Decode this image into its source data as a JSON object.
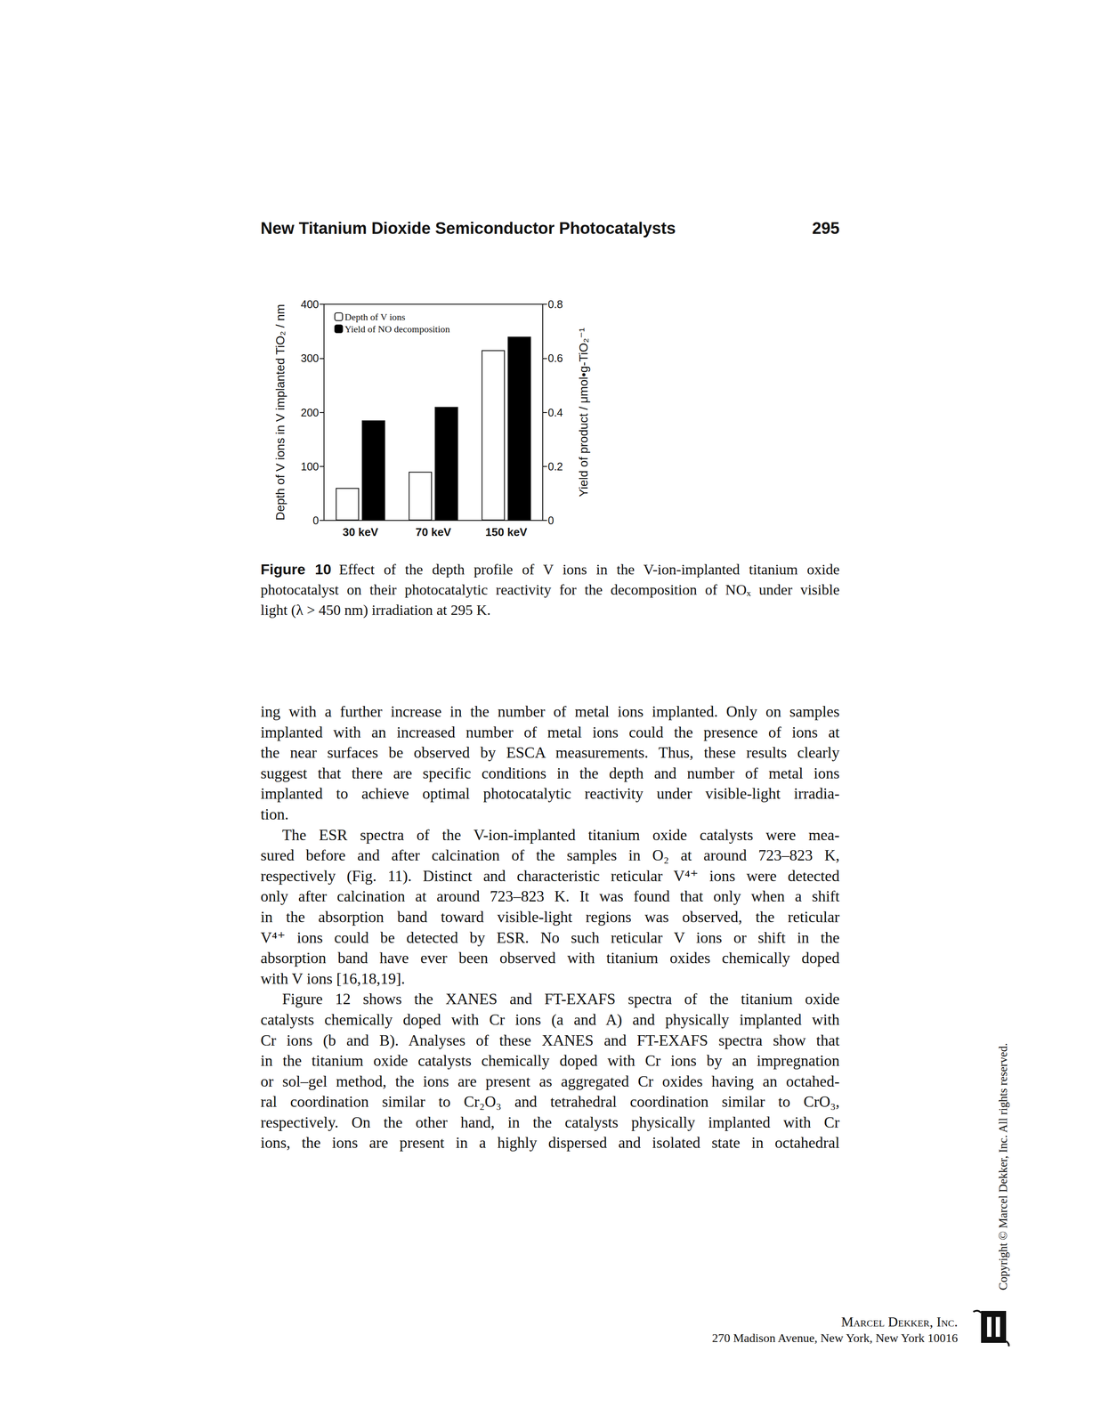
{
  "header": {
    "title": "New Titanium Dioxide Semiconductor Photocatalysts",
    "page": "295"
  },
  "chart_data": {
    "type": "bar",
    "categories": [
      "30 keV",
      "70 keV",
      "150 keV"
    ],
    "series": [
      {
        "name": "Depth of V ions",
        "color": "#ffffff",
        "values": [
          60,
          90,
          315
        ]
      },
      {
        "name": "Yield of NO decomposition",
        "color": "#000000",
        "values": [
          0.37,
          0.42,
          0.68
        ],
        "axis": "y2"
      }
    ],
    "y_label": "Depth of V ions in V implanted TiO₂ / nm",
    "y2_label": "Yield of product / μmol•g-TiO₂⁻¹",
    "ylim": [
      0,
      400
    ],
    "yticks": [
      0,
      100,
      200,
      300,
      400
    ],
    "y2lim": [
      0,
      0.8
    ],
    "y2ticks": [
      0,
      0.2,
      0.4,
      0.6,
      0.8
    ],
    "grid": false,
    "legend": "upper left"
  },
  "caption": {
    "label": "Figure 10",
    "lines": [
      "Effect of the depth profile of V ions in the V-ion-implanted titanium oxide",
      "photocatalyst on their photocatalytic reactivity for the decomposition of NOₓ under visible",
      "light (λ > 450 nm) irradiation at 295 K."
    ]
  },
  "paragraphs": [
    {
      "indent": false,
      "continues": false,
      "lines": [
        "ing with a further increase in the number of metal ions implanted. Only on samples",
        "implanted with an increased number of metal ions could the presence of ions at",
        "the near surfaces be observed by ESCA measurements. Thus, these results clearly",
        "suggest that there are specific conditions in the depth and number of metal ions",
        "implanted to achieve optimal photocatalytic reactivity under visible-light irradia-",
        "tion."
      ]
    },
    {
      "indent": true,
      "continues": false,
      "lines": [
        "The ESR spectra of the V-ion-implanted titanium oxide catalysts were mea-",
        "sured before and after calcination of the samples in O₂ at around 723–823 K,",
        "respectively (Fig. 11). Distinct and characteristic reticular V⁴⁺ ions were detected",
        "only after calcination at around 723–823 K. It was found that only when a shift",
        "in the absorption band toward visible-light regions was observed, the reticular",
        "V⁴⁺ ions could be detected by ESR. No such reticular V ions or shift in the",
        "absorption band have ever been observed with titanium oxides chemically doped",
        "with V ions [16,18,19]."
      ]
    },
    {
      "indent": true,
      "continues": true,
      "lines": [
        "Figure 12 shows the XANES and FT-EXAFS spectra of the titanium oxide",
        "catalysts chemically doped with Cr ions (a and A) and physically implanted with",
        "Cr ions (b and B). Analyses of these XANES and FT-EXAFS spectra show that",
        "in the titanium oxide catalysts chemically doped with Cr ions by an impregnation",
        "or sol–gel method, the ions are present as aggregated Cr oxides having an octahed-",
        "ral coordination similar to Cr₂O₃ and tetrahedral coordination similar to CrO₃,",
        "respectively. On the other hand, in the catalysts physically implanted with Cr",
        "ions, the ions are present in a highly dispersed and isolated state in octahedral"
      ]
    }
  ],
  "copyright": "Copyright © Marcel Dekker, Inc. All rights reserved.",
  "publisher": {
    "name": "Marcel Dekker, Inc.",
    "address": "270 Madison Avenue, New York, New York 10016"
  }
}
